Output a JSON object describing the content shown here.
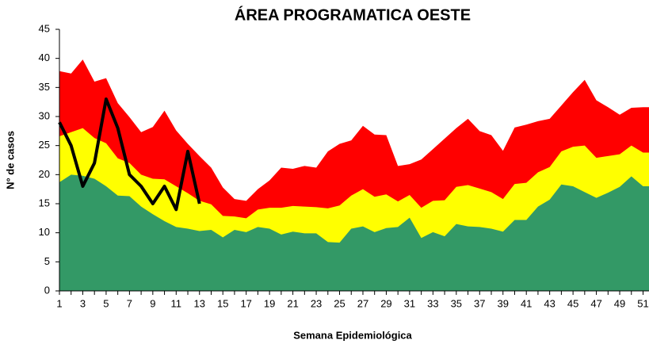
{
  "chart_data": {
    "type": "area",
    "title": "ÁREA PROGRAMATICA OESTE",
    "x_label": "Semana Epidemiológica",
    "y_label": "N° de casos",
    "categories": [
      "1",
      null,
      "3",
      null,
      "5",
      null,
      "7",
      null,
      "9",
      null,
      "11",
      null,
      "13",
      null,
      "15",
      null,
      "17",
      null,
      "19",
      null,
      "21",
      null,
      "23",
      null,
      "25",
      null,
      "27",
      null,
      "29",
      null,
      "31",
      null,
      "33",
      null,
      "35",
      null,
      "37",
      null,
      "39",
      null,
      "41",
      null,
      "43",
      null,
      "45",
      null,
      "47",
      null,
      "49",
      null,
      "51",
      null
    ],
    "ylim": [
      0,
      45
    ],
    "yticks": [
      0,
      5,
      10,
      15,
      20,
      25,
      30,
      35,
      40,
      45
    ],
    "series": [
      {
        "kind": "area",
        "color": "#ff0000",
        "values": [
          37.8,
          37.4,
          39.8,
          36,
          36.6,
          32.3,
          29.9,
          27.3,
          28.2,
          31,
          27.6,
          25.3,
          23.2,
          21.2,
          17.8,
          15.8,
          15.5,
          17.5,
          19,
          21.2,
          21,
          21.5,
          21.2,
          24,
          25.3,
          25.9,
          28.4,
          26.9,
          26.8,
          21.5,
          21.8,
          22.6,
          24.4,
          26.2,
          28,
          29.6,
          27.5,
          26.8,
          24.1,
          28.1,
          28.6,
          29.2,
          29.6,
          31.9,
          34.2,
          36.3,
          32.8,
          31.6,
          30.3,
          31.5,
          31.6,
          31.6
        ]
      },
      {
        "kind": "area",
        "color": "#ffff00",
        "values": [
          26.6,
          27.3,
          28,
          26.3,
          25.4,
          22.8,
          22,
          20,
          19.3,
          19.2,
          18,
          16.8,
          15.5,
          14.9,
          12.9,
          12.8,
          12.5,
          14,
          14.3,
          14.3,
          14.6,
          14.5,
          14.4,
          14.2,
          14.7,
          16.4,
          17.5,
          16.2,
          16.6,
          15.4,
          16.5,
          14.3,
          15.5,
          15.6,
          17.9,
          18.2,
          17.6,
          17,
          15.8,
          18.4,
          18.6,
          20.4,
          21.3,
          24,
          24.8,
          25,
          22.9,
          23.2,
          23.5,
          25,
          23.8,
          23.8
        ]
      },
      {
        "kind": "area",
        "color": "#339966",
        "values": [
          18.7,
          20,
          19.8,
          19.3,
          18,
          16.4,
          16.3,
          14.5,
          13.2,
          12,
          11,
          10.7,
          10.3,
          10.5,
          9.2,
          10.5,
          10.1,
          11,
          10.7,
          9.7,
          10.2,
          9.9,
          9.9,
          8.4,
          8.3,
          10.7,
          11.1,
          10.1,
          10.8,
          11,
          12.6,
          9.1,
          10.1,
          9.4,
          11.5,
          11.1,
          11,
          10.7,
          10.2,
          12.2,
          12.2,
          14.5,
          15.7,
          18.3,
          18,
          17,
          16,
          16.9,
          17.9,
          19.7,
          18,
          18
        ]
      },
      {
        "kind": "line",
        "color": "#000000",
        "values": [
          29,
          25,
          18,
          22,
          33,
          28,
          20,
          18,
          15,
          18,
          14,
          24,
          15,
          null,
          null,
          null,
          null,
          null,
          null,
          null,
          null,
          null,
          null,
          null,
          null,
          null,
          null,
          null,
          null,
          null,
          null,
          null,
          null,
          null,
          null,
          null,
          null,
          null,
          null,
          null,
          null,
          null,
          null,
          null,
          null,
          null,
          null,
          null,
          null,
          null,
          null,
          null
        ]
      }
    ]
  }
}
